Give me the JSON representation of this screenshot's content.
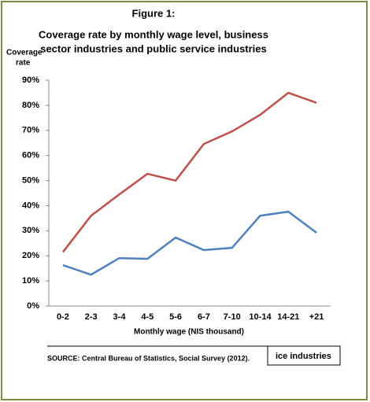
{
  "chart_data": {
    "type": "line",
    "title": "Figure 1:",
    "subtitle": [
      "Coverage rate by monthly wage level, business",
      "sector industries and public service industries"
    ],
    "y_label": [
      "Coverage",
      "rate"
    ],
    "x_label": "Monthly wage (NIS thousand)",
    "categories": [
      "0-2",
      "2-3",
      "3-4",
      "4-5",
      "5-6",
      "6-7",
      "7-10",
      "10-14",
      "14-21",
      "+21"
    ],
    "series": [
      {
        "color": "#c0504d",
        "values": [
          21.5,
          36,
          44.5,
          52.7,
          50,
          64.6,
          69.6,
          76.2,
          85,
          81
        ]
      },
      {
        "color": "#4f81bd",
        "values": [
          16.3,
          12.5,
          19.1,
          18.8,
          27.3,
          22.3,
          23.2,
          36,
          37.6,
          29.2
        ]
      }
    ],
    "ylim": [
      0,
      90
    ],
    "yticks": [
      {
        "value": 0,
        "label": "0%"
      },
      {
        "value": 10,
        "label": "10%"
      },
      {
        "value": 20,
        "label": "20%"
      },
      {
        "value": 30,
        "label": "30%"
      },
      {
        "value": 40,
        "label": "40%"
      },
      {
        "value": 50,
        "label": "50%"
      },
      {
        "value": 60,
        "label": "60%"
      },
      {
        "value": 70,
        "label": "70%"
      },
      {
        "value": 80,
        "label": "80%"
      },
      {
        "value": 90,
        "label": "90%"
      }
    ],
    "legend_fragment": "ice industries",
    "source": "SOURCE: Central Bureau of Statistics, Social Survey (2012)."
  }
}
